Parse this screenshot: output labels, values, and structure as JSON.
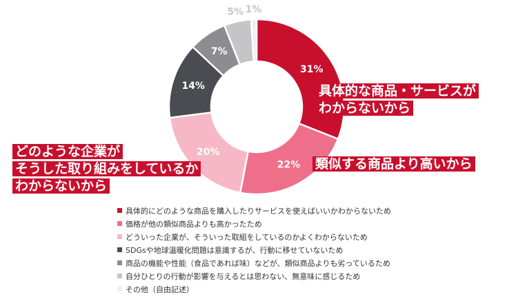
{
  "chart_data": {
    "type": "pie",
    "donut": true,
    "values": [
      31,
      22,
      20,
      14,
      7,
      5,
      1
    ],
    "value_labels": [
      "31%",
      "22%",
      "20%",
      "14%",
      "7%",
      "5%",
      "1%"
    ],
    "colors": [
      "#c8102e",
      "#ee6f8a",
      "#f6b8c6",
      "#4b4b52",
      "#8c8c91",
      "#c5c5c8",
      "#eeeeee"
    ],
    "legend": [
      "具体的にどのような商品を購入したりサービスを使えばいいかわからないため",
      "価格が他の類似商品よりも高かったため",
      "どういった企業が、そういった取組をしているのかよくわからないため",
      "SDGsや地球温暖化問題は意識するが、行動に移せていないため",
      "商品の機能や性能（食品であれば味）などが、類似商品よりも劣っているため",
      "自分ひとりの行動が影響を与えるとは思わない、無意味に感じるため",
      "その他（自由記述）"
    ],
    "legend_position": "bottom"
  },
  "callouts": {
    "first": [
      "具体的な商品・サービスが",
      "わからないから"
    ],
    "second": [
      "類似する商品より高いから"
    ],
    "third": [
      "どのような企業が",
      "そうした取り組みをしているか",
      "わからないから"
    ]
  }
}
